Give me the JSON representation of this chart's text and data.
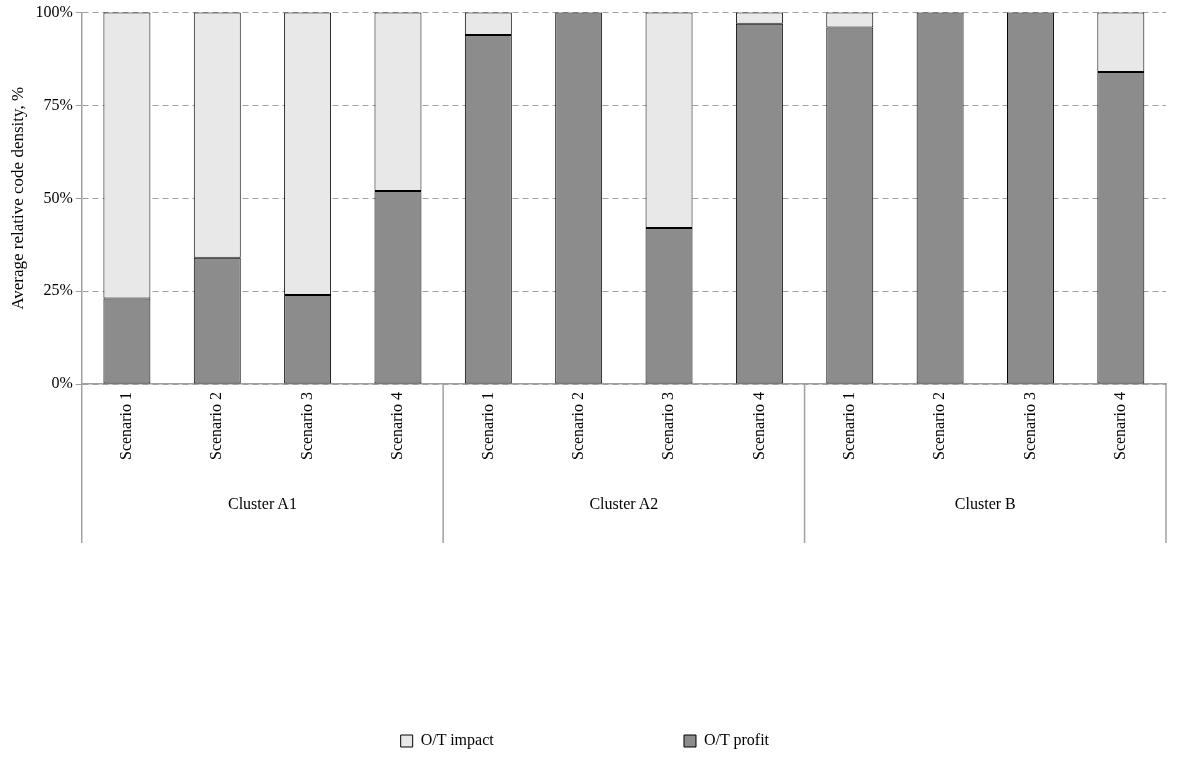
{
  "chart_data": {
    "type": "bar",
    "stacked": true,
    "ylabel": "Average relative code density, %",
    "categories": [
      "Scenario 1",
      "Scenario 2",
      "Scenario 3",
      "Scenario 4",
      "Scenario 1",
      "Scenario 2",
      "Scenario 3",
      "Scenario 4",
      "Scenario 1",
      "Scenario 2",
      "Scenario 3",
      "Scenario 4"
    ],
    "series": [
      {
        "name": "O/T profit",
        "color": "#8c8c8c",
        "values": [
          23,
          34,
          24,
          52,
          94,
          100,
          42,
          97,
          96,
          100,
          100,
          84
        ]
      },
      {
        "name": "O/T impact",
        "color": "#e8e8e8",
        "values": [
          77,
          66,
          76,
          48,
          6,
          0,
          58,
          3,
          4,
          0,
          0,
          16
        ]
      }
    ],
    "annotations": [
      "Cluster A1",
      "Cluster A2",
      "Cluster B"
    ],
    "ylim": [
      0,
      100
    ],
    "yticks": [
      {
        "value": 0,
        "label": "0%"
      },
      {
        "value": 25,
        "label": "25%"
      },
      {
        "value": 50,
        "label": "50%"
      },
      {
        "value": 75,
        "label": "75%"
      },
      {
        "value": 100,
        "label": "100%"
      }
    ],
    "grid": "y",
    "legend": "bottom"
  }
}
